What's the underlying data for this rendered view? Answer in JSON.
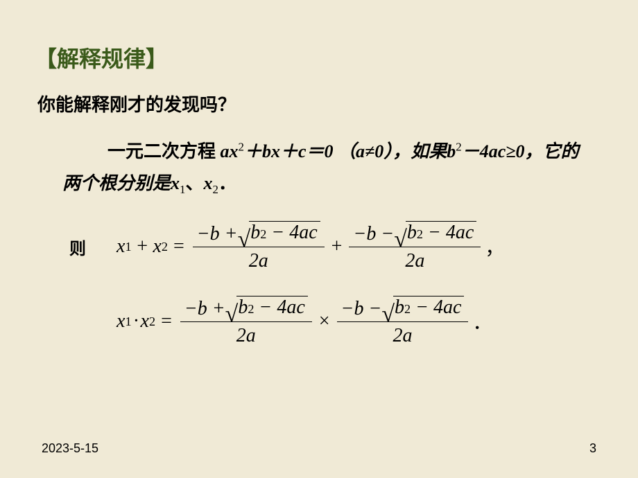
{
  "title": "【解释规律】",
  "question": "你能解释刚才的发现吗？",
  "paragraph": {
    "lead": "一元二次方程 ",
    "eq_text_prefix": "ax",
    "eq_text_rest": "＋bx＋c＝0 （a≠0），如果",
    "cond_lhs": "b",
    "cond_rest": "－4ac≥0，它的两个根分别是",
    "roots_join": "、",
    "x1": "x",
    "x1_sub": "1",
    "x2": "x",
    "x2_sub": "2",
    "period": "．"
  },
  "equations": {
    "label": "则",
    "sum": {
      "lhs_x1": "x",
      "lhs_sub1": "1",
      "lhs_op": "+",
      "lhs_x2": "x",
      "lhs_sub2": "2",
      "eq": "=",
      "op_between": "+",
      "tail": "，"
    },
    "prod": {
      "lhs_x1": "x",
      "lhs_sub1": "1",
      "lhs_op": "·",
      "lhs_x2": "x",
      "lhs_sub2": "2",
      "eq": "=",
      "op_between": "×",
      "tail": "．"
    },
    "frac1": {
      "num_prefix": "−b +",
      "rad_b": "b",
      "rad_exp": "2",
      "rad_rest": "− 4ac",
      "den": "2a"
    },
    "frac2": {
      "num_prefix": "−b −",
      "rad_b": "b",
      "rad_exp": "2",
      "rad_rest": "− 4ac",
      "den": "2a"
    }
  },
  "footer": {
    "date": "2023-5-15",
    "page": "3"
  },
  "colors": {
    "background": "#f0ead6",
    "title": "#3a5a1a",
    "text": "#000000"
  }
}
